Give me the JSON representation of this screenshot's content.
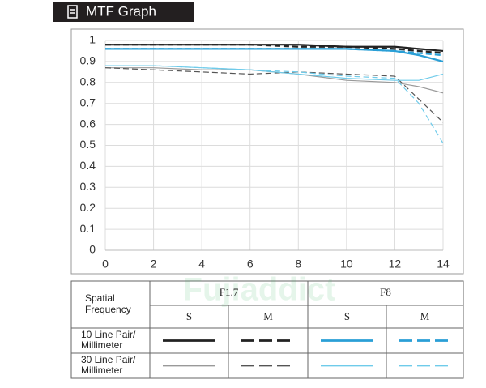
{
  "chart_data": {
    "type": "line",
    "title": "MTF Graph",
    "watermark": "Fujiaddict",
    "x": [
      0,
      2,
      4,
      6,
      8,
      10,
      12,
      13,
      14
    ],
    "series": [
      {
        "color": "#222222",
        "dash": false,
        "width": 2.2,
        "values": [
          0.98,
          0.98,
          0.98,
          0.98,
          0.98,
          0.97,
          0.97,
          0.96,
          0.95
        ]
      },
      {
        "color": "#222222",
        "dash": true,
        "width": 2.2,
        "values": [
          0.98,
          0.98,
          0.98,
          0.98,
          0.97,
          0.97,
          0.96,
          0.95,
          0.94
        ]
      },
      {
        "color": "#2a9fd6",
        "dash": false,
        "width": 2.2,
        "values": [
          0.96,
          0.96,
          0.96,
          0.96,
          0.96,
          0.96,
          0.95,
          0.93,
          0.9
        ]
      },
      {
        "color": "#2a9fd6",
        "dash": true,
        "width": 2.2,
        "values": [
          0.96,
          0.96,
          0.96,
          0.96,
          0.96,
          0.96,
          0.95,
          0.94,
          0.93
        ]
      },
      {
        "color": "#999999",
        "dash": false,
        "width": 1.2,
        "values": [
          0.87,
          0.87,
          0.86,
          0.86,
          0.84,
          0.81,
          0.8,
          0.78,
          0.75
        ]
      },
      {
        "color": "#555555",
        "dash": true,
        "width": 1.2,
        "values": [
          0.87,
          0.86,
          0.85,
          0.84,
          0.85,
          0.84,
          0.83,
          0.72,
          0.61
        ]
      },
      {
        "color": "#6fcbea",
        "dash": false,
        "width": 1.2,
        "values": [
          0.88,
          0.88,
          0.87,
          0.86,
          0.84,
          0.82,
          0.81,
          0.81,
          0.84
        ]
      },
      {
        "color": "#6fcbea",
        "dash": true,
        "width": 1.2,
        "values": [
          0.88,
          0.88,
          0.87,
          0.86,
          0.85,
          0.83,
          0.82,
          0.7,
          0.51
        ]
      }
    ],
    "xlim": [
      0,
      14
    ],
    "xticks": [
      0,
      2,
      4,
      6,
      8,
      10,
      12,
      14
    ],
    "ylim": [
      0,
      1
    ],
    "yticks": [
      0,
      0.1,
      0.2,
      0.3,
      0.4,
      0.5,
      0.6,
      0.7,
      0.8,
      0.9,
      1
    ],
    "grid": true,
    "legend_table": {
      "header": [
        "Spatial",
        "Frequency"
      ],
      "groups": [
        "F1.7",
        "F8"
      ],
      "subheaders": [
        "S",
        "M",
        "S",
        "M"
      ],
      "rows": [
        [
          "10 Line Pair/",
          "Millimeter"
        ],
        [
          "30 Line Pair/",
          "Millimeter"
        ]
      ]
    }
  }
}
